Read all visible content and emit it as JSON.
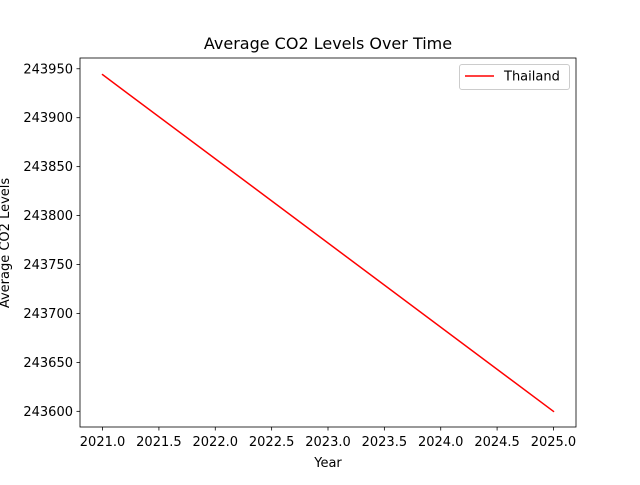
{
  "chart_data": {
    "type": "line",
    "title": "Average CO2 Levels Over Time",
    "xlabel": "Year",
    "ylabel": "Average CO2 Levels",
    "xlim": [
      2020.8,
      2025.2
    ],
    "ylim": [
      243584,
      243961
    ],
    "x_ticks": [
      2021.0,
      2021.5,
      2022.0,
      2022.5,
      2023.0,
      2023.5,
      2024.0,
      2024.5,
      2025.0
    ],
    "x_tick_labels": [
      "2021.0",
      "2021.5",
      "2022.0",
      "2022.5",
      "2023.0",
      "2023.5",
      "2024.0",
      "2024.5",
      "2025.0"
    ],
    "y_ticks": [
      243600,
      243650,
      243700,
      243750,
      243800,
      243850,
      243900,
      243950
    ],
    "y_tick_labels": [
      "243600",
      "243650",
      "243700",
      "243750",
      "243800",
      "243850",
      "243900",
      "243950"
    ],
    "series": [
      {
        "name": "Thailand",
        "color": "#ff0000",
        "x": [
          2021,
          2025
        ],
        "y": [
          243944,
          243600
        ]
      }
    ],
    "legend_position": "top-right",
    "grid": false
  }
}
